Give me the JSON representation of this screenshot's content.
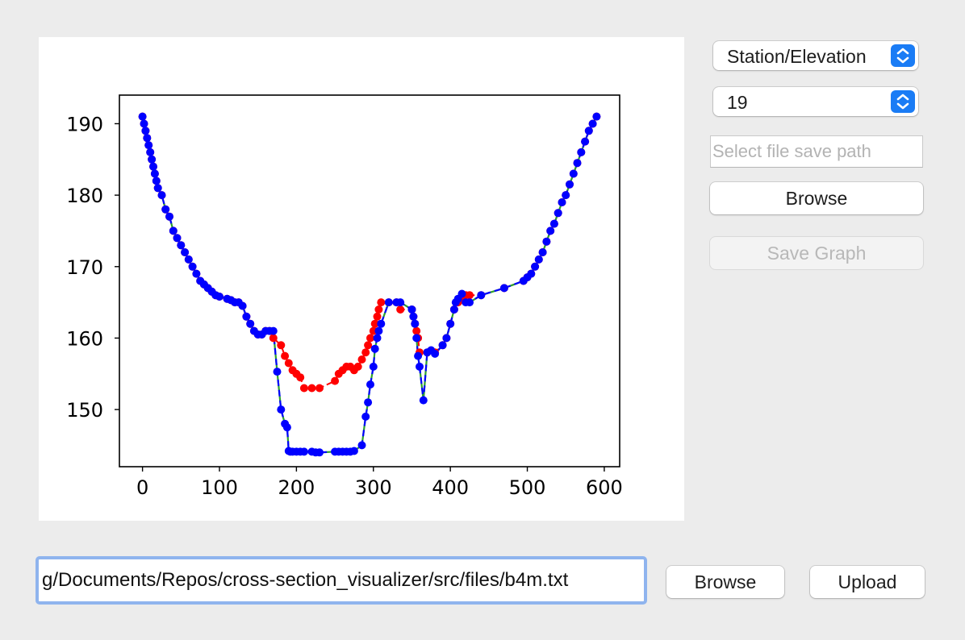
{
  "controls": {
    "plot_type_select": {
      "value": "Station/Elevation"
    },
    "index_select": {
      "value": "19"
    },
    "save_path": {
      "placeholder": "Select file save path",
      "value": ""
    },
    "save_browse_label": "Browse",
    "save_graph_label": "Save Graph",
    "file_path_value": "g/Documents/Repos/cross-section_visualizer/src/files/b4m.txt",
    "file_browse_label": "Browse",
    "upload_label": "Upload"
  },
  "colors": {
    "accent": "#1a7cf5",
    "focus_ring": "#8fb4ee",
    "series_original": "#ff0000",
    "series_modified": "#0000ff",
    "series_line_alt": "#2ca02c"
  },
  "chart_data": {
    "type": "line",
    "title": "",
    "xlabel": "",
    "ylabel": "",
    "xlim": [
      -30,
      620
    ],
    "ylim": [
      142,
      194
    ],
    "xticks": [
      0,
      100,
      200,
      300,
      400,
      500,
      600
    ],
    "yticks": [
      150,
      160,
      170,
      180,
      190
    ],
    "grid": false,
    "legend": "none",
    "series": [
      {
        "color": "#ff0000",
        "style": "dashed-with-dots",
        "x": [
          0,
          2,
          4,
          6,
          8,
          10,
          12,
          14,
          16,
          18,
          20,
          25,
          30,
          35,
          40,
          45,
          50,
          55,
          60,
          65,
          70,
          75,
          80,
          85,
          90,
          95,
          100,
          110,
          115,
          120,
          125,
          130,
          135,
          140,
          145,
          150,
          155,
          160,
          165,
          170,
          180,
          185,
          190,
          195,
          200,
          205,
          210,
          220,
          230,
          250,
          255,
          260,
          265,
          270,
          275,
          280,
          285,
          290,
          293,
          296,
          300,
          302,
          305,
          307,
          310,
          320,
          330,
          335,
          350,
          352,
          354,
          356,
          358,
          360,
          370,
          380,
          390,
          395,
          400,
          405,
          410,
          415,
          420,
          425,
          440,
          470,
          495,
          500,
          505,
          510,
          515,
          520,
          525,
          530,
          535,
          540,
          545,
          550,
          555,
          560,
          565,
          570,
          575,
          580,
          585,
          590
        ],
        "y": [
          191,
          190,
          189,
          188,
          187,
          186,
          185,
          184,
          183,
          182,
          181,
          180,
          178,
          177,
          175,
          174,
          173,
          172,
          171,
          170,
          169,
          168,
          167.5,
          167,
          166.5,
          166,
          165.8,
          165.5,
          165.3,
          165,
          165,
          164.5,
          163,
          162,
          161,
          160.5,
          160.5,
          161,
          161,
          160,
          159,
          157.5,
          156.5,
          155.5,
          155,
          154.5,
          153,
          153,
          153,
          154,
          155,
          155.5,
          156,
          156,
          155.5,
          156,
          157,
          158,
          159,
          160,
          161,
          162,
          163,
          164,
          165,
          165,
          165,
          164,
          164,
          163,
          162,
          161,
          160,
          158,
          158,
          158,
          159,
          160,
          162,
          164,
          165,
          165.5,
          166,
          166,
          166,
          167,
          168,
          168.5,
          169,
          170,
          171,
          172,
          173.5,
          175,
          176,
          177.5,
          179,
          180,
          181.5,
          183,
          184.5,
          186,
          187.5,
          189,
          190,
          191
        ]
      },
      {
        "color": "#0000ff",
        "style": "dashed-with-dots",
        "x": [
          0,
          2,
          4,
          6,
          8,
          10,
          12,
          14,
          16,
          18,
          20,
          25,
          30,
          35,
          40,
          45,
          50,
          55,
          60,
          65,
          70,
          75,
          80,
          85,
          90,
          95,
          100,
          110,
          115,
          120,
          125,
          130,
          135,
          140,
          145,
          150,
          155,
          160,
          165,
          170,
          175,
          180,
          185,
          188,
          190,
          192,
          195,
          200,
          205,
          210,
          220,
          225,
          230,
          250,
          255,
          260,
          265,
          270,
          275,
          285,
          290,
          293,
          296,
          300,
          302,
          305,
          307,
          310,
          320,
          330,
          335,
          350,
          352,
          354,
          356,
          358,
          360,
          365,
          370,
          375,
          380,
          390,
          395,
          400,
          405,
          407,
          410,
          415,
          420,
          425,
          440,
          470,
          495,
          500,
          505,
          510,
          515,
          520,
          525,
          530,
          535,
          540,
          545,
          550,
          555,
          560,
          565,
          570,
          575,
          580,
          585,
          590
        ],
        "y": [
          191,
          190,
          189,
          188,
          187,
          186,
          185,
          184,
          183,
          182,
          181,
          180,
          178,
          177,
          175,
          174,
          173,
          172,
          171,
          170,
          169,
          168,
          167.5,
          167,
          166.5,
          166,
          165.8,
          165.5,
          165.3,
          165,
          165,
          164.5,
          163,
          162,
          161,
          160.5,
          160.5,
          161,
          161,
          161,
          155.3,
          150,
          148,
          147.5,
          144.2,
          144.1,
          144.1,
          144.1,
          144.1,
          144.1,
          144.1,
          144,
          144,
          144.1,
          144.1,
          144.1,
          144.1,
          144.1,
          144.2,
          145,
          149,
          151,
          153.5,
          156,
          158.5,
          160,
          161,
          162,
          165,
          165,
          165,
          164,
          163,
          162,
          160,
          157.5,
          156,
          151.3,
          158,
          158.3,
          157.8,
          159,
          160,
          162,
          164,
          165,
          165.5,
          166.2,
          165,
          165,
          166,
          167,
          168,
          168.5,
          169,
          170,
          171,
          172,
          173.5,
          175,
          176,
          177.5,
          179,
          180,
          181.5,
          183,
          184.5,
          186,
          187.5,
          189,
          190,
          191
        ]
      }
    ]
  }
}
